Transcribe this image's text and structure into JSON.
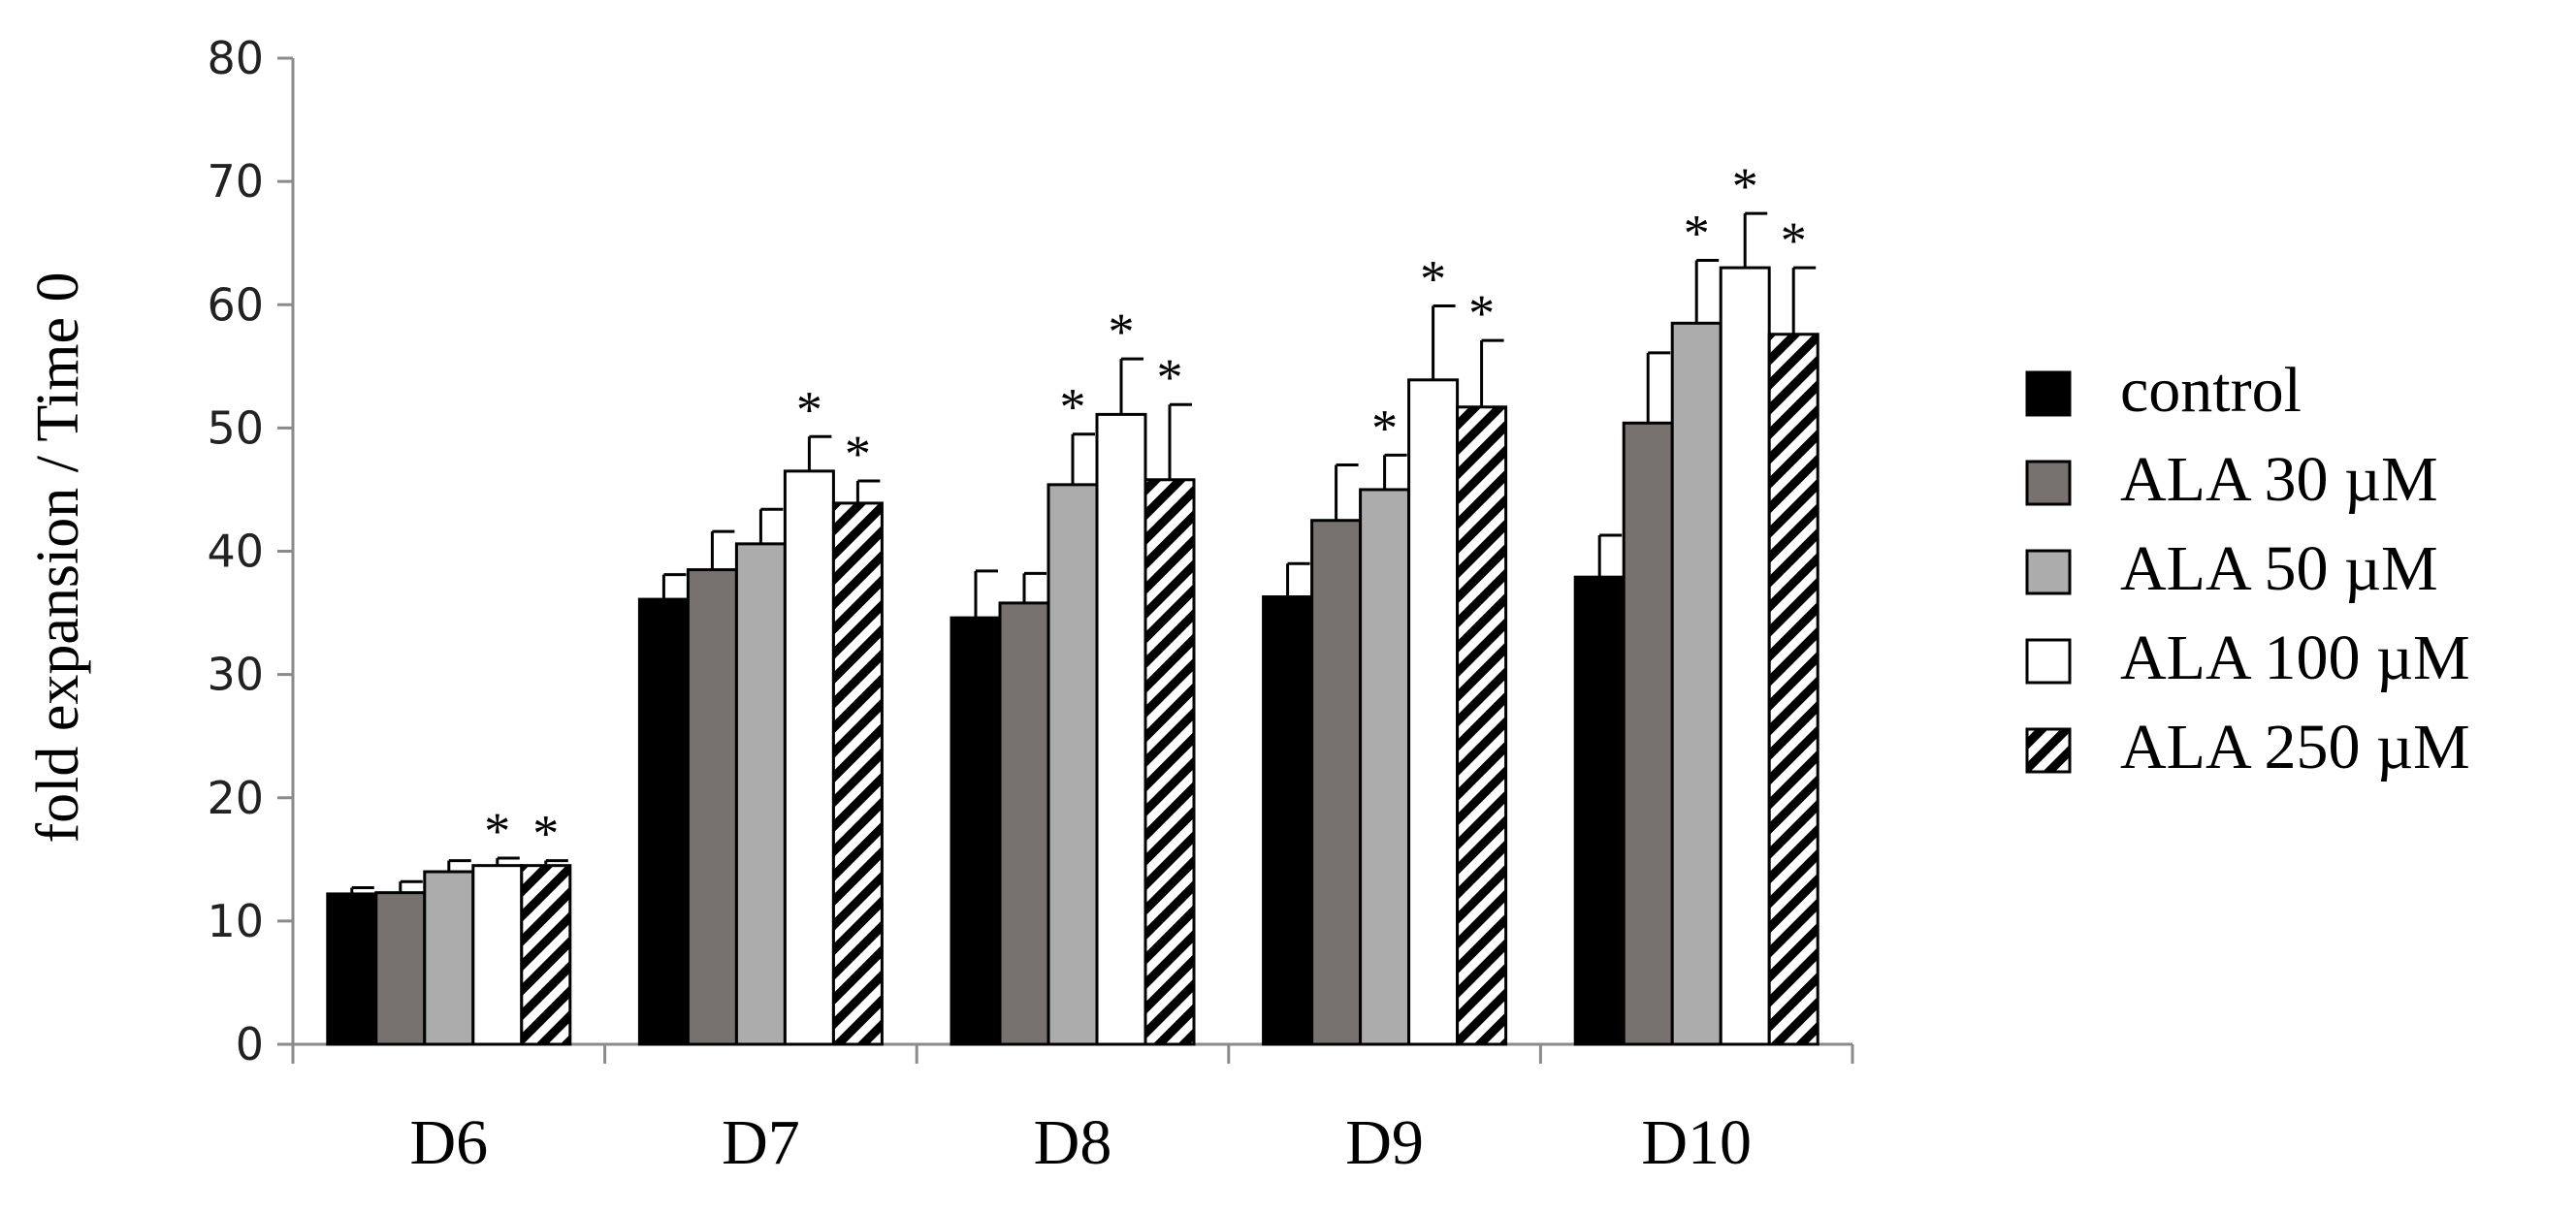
{
  "chart_data": {
    "type": "bar",
    "title": "",
    "xlabel": "",
    "ylabel": "fold expansion / Time 0",
    "ylim": [
      0,
      80
    ],
    "yticks": [
      0,
      10,
      20,
      30,
      40,
      50,
      60,
      70,
      80
    ],
    "grid": false,
    "legend_position": "right",
    "categories": [
      "D6",
      "D7",
      "D8",
      "D9",
      "D10"
    ],
    "series": [
      {
        "name": "control",
        "fill": "#000000",
        "pattern": "solid",
        "values": [
          12.2,
          36.1,
          34.6,
          36.3,
          37.9
        ],
        "errors": [
          0.5,
          2.0,
          3.8,
          2.7,
          3.4
        ],
        "significant": [
          false,
          false,
          false,
          false,
          false
        ]
      },
      {
        "name": "ALA 30 µM",
        "fill": "#777270",
        "pattern": "solid",
        "values": [
          12.3,
          38.5,
          35.8,
          42.5,
          50.4
        ],
        "errors": [
          0.9,
          3.1,
          2.4,
          4.5,
          5.7
        ],
        "significant": [
          false,
          false,
          false,
          false,
          false
        ]
      },
      {
        "name": "ALA 50 µM",
        "fill": "#acacac",
        "pattern": "solid",
        "values": [
          14.0,
          40.6,
          45.4,
          45.0,
          58.5
        ],
        "errors": [
          0.9,
          2.8,
          4.1,
          2.8,
          5.1
        ],
        "significant": [
          false,
          false,
          true,
          true,
          true
        ]
      },
      {
        "name": "ALA 100 µM",
        "fill": "#ffffff",
        "pattern": "solid",
        "values": [
          14.5,
          46.5,
          51.1,
          53.9,
          63.0
        ],
        "errors": [
          0.6,
          2.8,
          4.5,
          6.0,
          4.4
        ],
        "significant": [
          true,
          true,
          true,
          true,
          true
        ]
      },
      {
        "name": "ALA 250 µM",
        "fill": "#ffffff",
        "pattern": "hatch",
        "values": [
          14.5,
          43.9,
          45.8,
          51.7,
          57.6
        ],
        "errors": [
          0.4,
          1.8,
          6.1,
          5.4,
          5.4
        ],
        "significant": [
          true,
          true,
          true,
          true,
          true
        ]
      }
    ],
    "significance_marker": "*"
  }
}
